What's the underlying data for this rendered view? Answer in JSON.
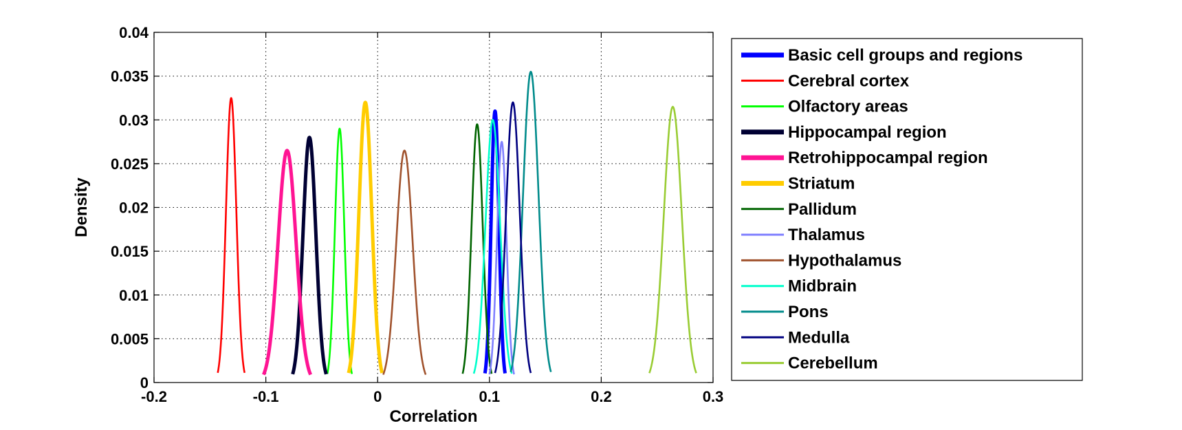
{
  "chart_data": {
    "type": "line",
    "title": "",
    "xlabel": "Correlation",
    "ylabel": "Density",
    "xlim": [
      -0.2,
      0.3
    ],
    "ylim": [
      0,
      0.04
    ],
    "xticks": [
      -0.2,
      -0.1,
      0,
      0.1,
      0.2,
      0.3
    ],
    "xtick_labels": [
      "-0.2",
      "-0.1",
      "0",
      "0.1",
      "0.2",
      "0.3"
    ],
    "yticks": [
      0,
      0.005,
      0.01,
      0.015,
      0.02,
      0.025,
      0.03,
      0.035,
      0.04
    ],
    "ytick_labels": [
      "0",
      "0.005",
      "0.01",
      "0.015",
      "0.02",
      "0.025",
      "0.03",
      "0.035",
      "0.04"
    ],
    "grid": true,
    "legend_position": "outside-right",
    "series": [
      {
        "name": "Basic cell groups and regions",
        "color": "#0000ff",
        "bold": true,
        "peak_x": 0.105,
        "peak_y": 0.031,
        "halfwidth": 0.009
      },
      {
        "name": "Cerebral cortex",
        "color": "#ff0000",
        "bold": false,
        "peak_x": -0.131,
        "peak_y": 0.0325,
        "halfwidth": 0.012
      },
      {
        "name": "Olfactory areas",
        "color": "#00ff00",
        "bold": false,
        "peak_x": -0.034,
        "peak_y": 0.029,
        "halfwidth": 0.011
      },
      {
        "name": "Hippocampal region",
        "color": "#000033",
        "bold": true,
        "peak_x": -0.061,
        "peak_y": 0.028,
        "halfwidth": 0.015
      },
      {
        "name": "Retrohippocampal region",
        "color": "#ff1493",
        "bold": true,
        "peak_x": -0.081,
        "peak_y": 0.0265,
        "halfwidth": 0.021
      },
      {
        "name": "Striatum",
        "color": "#ffcc00",
        "bold": true,
        "peak_x": -0.011,
        "peak_y": 0.032,
        "halfwidth": 0.015
      },
      {
        "name": "Pallidum",
        "color": "#006400",
        "bold": false,
        "peak_x": 0.089,
        "peak_y": 0.0295,
        "halfwidth": 0.013
      },
      {
        "name": "Thalamus",
        "color": "#8080ff",
        "bold": false,
        "peak_x": 0.111,
        "peak_y": 0.0275,
        "halfwidth": 0.011
      },
      {
        "name": "Hypothalamus",
        "color": "#a0522d",
        "bold": false,
        "peak_x": 0.024,
        "peak_y": 0.0265,
        "halfwidth": 0.019
      },
      {
        "name": "Midbrain",
        "color": "#00ffcc",
        "bold": false,
        "peak_x": 0.103,
        "peak_y": 0.03,
        "halfwidth": 0.017
      },
      {
        "name": "Pons",
        "color": "#008b8b",
        "bold": false,
        "peak_x": 0.137,
        "peak_y": 0.0355,
        "halfwidth": 0.018
      },
      {
        "name": "Medulla",
        "color": "#000080",
        "bold": false,
        "peak_x": 0.121,
        "peak_y": 0.032,
        "halfwidth": 0.016
      },
      {
        "name": "Cerebellum",
        "color": "#99cc33",
        "bold": false,
        "peak_x": 0.264,
        "peak_y": 0.0315,
        "halfwidth": 0.021
      }
    ]
  }
}
